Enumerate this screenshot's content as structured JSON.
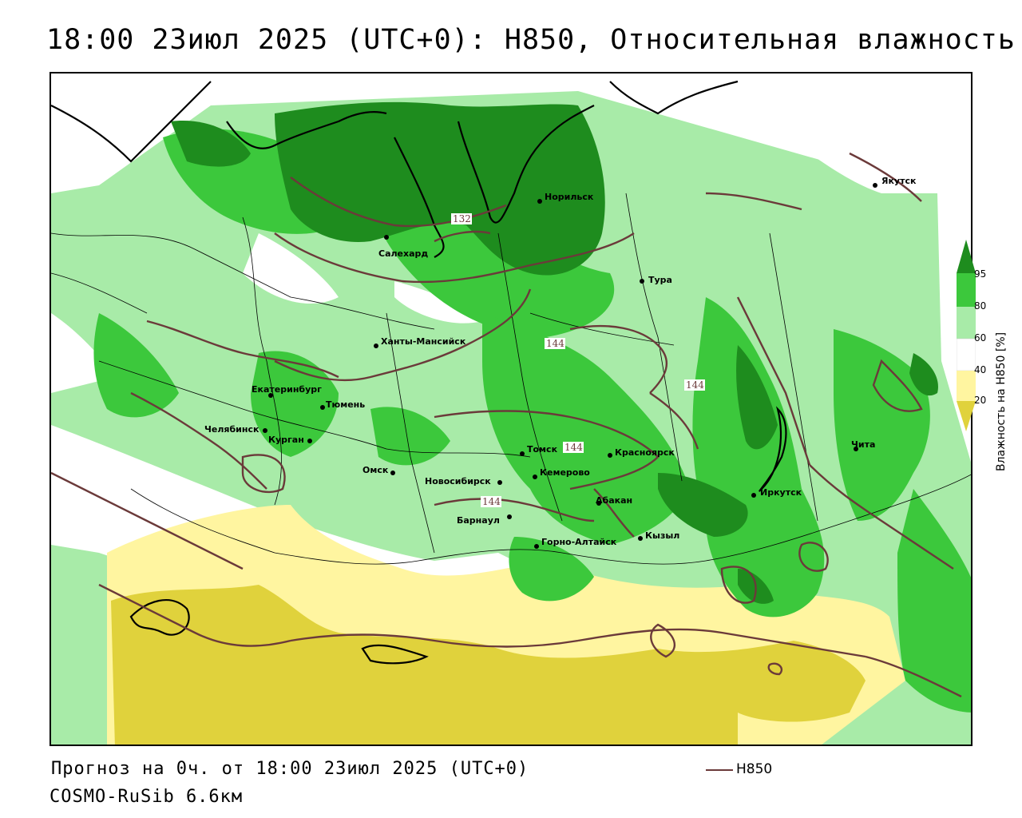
{
  "title": "18:00 23июл 2025 (UTC+0): H850, Относительная влажность",
  "footer": {
    "forecast": "Прогноз на 0ч. от 18:00 23июл 2025 (UTC+0)",
    "model": "COSMO-RuSib 6.6км"
  },
  "legend": {
    "contour_label": "H850",
    "contour_color": "#6b3a3a"
  },
  "colorbar": {
    "title": "Влажность на H850 [%]",
    "ticks": [
      "95",
      "80",
      "60",
      "40",
      "20"
    ],
    "colors": {
      "c95": "#1e8c1e",
      "c80": "#3cc83c",
      "c60": "#a8eba8",
      "c40": "#ffffff",
      "c20": "#fff5a0",
      "c0": "#e0d23c"
    }
  },
  "cities": [
    {
      "name": "Якутск"
    },
    {
      "name": "Норильск"
    },
    {
      "name": "Салехард"
    },
    {
      "name": "Тура"
    },
    {
      "name": "Ханты-Мансийск"
    },
    {
      "name": "Екатеринбург"
    },
    {
      "name": "Тюмень"
    },
    {
      "name": "Челябинск"
    },
    {
      "name": "Курган"
    },
    {
      "name": "Омск"
    },
    {
      "name": "Новосибирск"
    },
    {
      "name": "Томск"
    },
    {
      "name": "Кемерово"
    },
    {
      "name": "Красноярск"
    },
    {
      "name": "Абакан"
    },
    {
      "name": "Барнаул"
    },
    {
      "name": "Горно-Алтайск"
    },
    {
      "name": "Кызыл"
    },
    {
      "name": "Иркутск"
    },
    {
      "name": "Чита"
    }
  ],
  "contour_labels": [
    "132",
    "144",
    "144",
    "144",
    "144"
  ]
}
